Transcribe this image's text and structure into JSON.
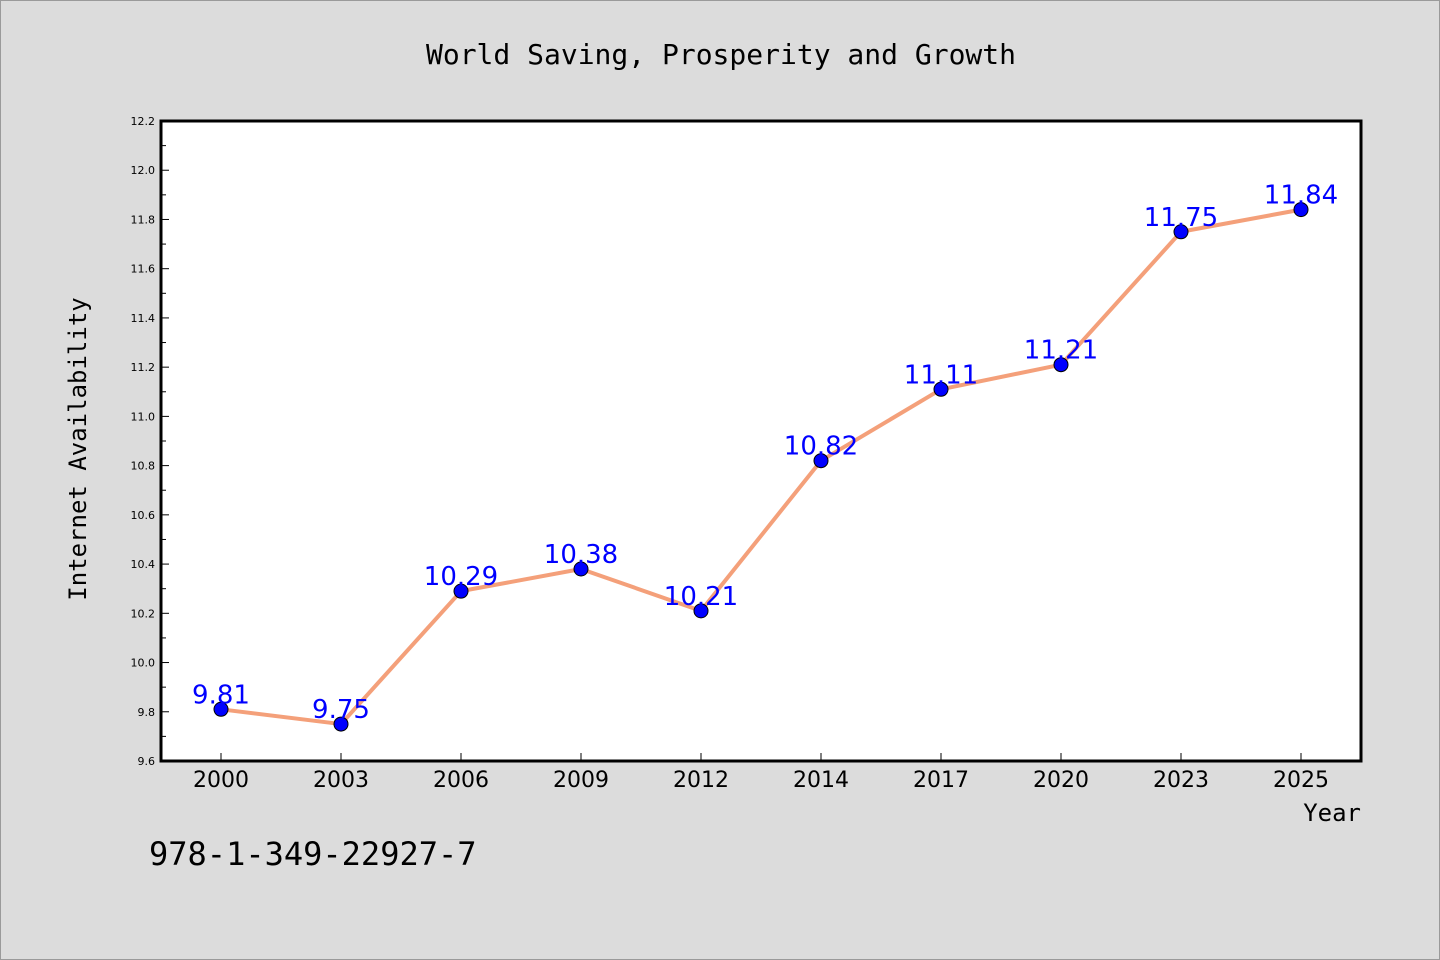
{
  "chart_data": {
    "type": "line",
    "title": "World Saving, Prosperity and Growth",
    "xlabel": "Year",
    "ylabel": "Internet Availability",
    "categories": [
      "2000",
      "2003",
      "2006",
      "2009",
      "2012",
      "2014",
      "2017",
      "2020",
      "2023",
      "2025"
    ],
    "values": [
      9.81,
      9.75,
      10.29,
      10.38,
      10.21,
      10.82,
      11.11,
      11.21,
      11.75,
      11.84
    ],
    "data_labels": [
      "9.81",
      "9.75",
      "10.29",
      "10.38",
      "10.21",
      "10.82",
      "11.11",
      "11.21",
      "11.75",
      "11.84"
    ],
    "ylim": [
      9.6,
      12.2
    ],
    "yticks": [
      "9.6",
      "9.8",
      "10.0",
      "10.2",
      "10.4",
      "10.6",
      "10.8",
      "11.0",
      "11.2",
      "11.4",
      "11.6",
      "11.8",
      "12.0",
      "12.2"
    ],
    "grid": false,
    "legend": "none",
    "annotation": "978-1-349-22927-7",
    "colors": {
      "background": "#dcdcdc",
      "plot_area": "#ffffff",
      "line": "#f4a07a",
      "marker": "#0000ff",
      "data_label": "#0000ff",
      "axis": "#000000"
    }
  }
}
